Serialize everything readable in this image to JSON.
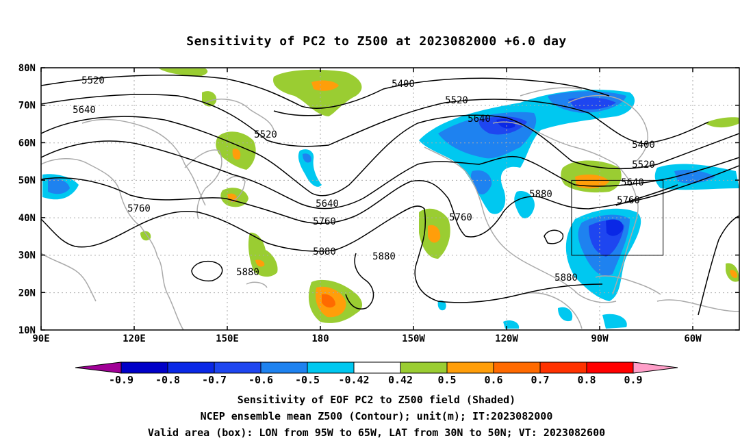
{
  "title": "Sensitivity of PC2 to Z500 at 2023082000 +6.0 day",
  "lat_labels": [
    "80N",
    "70N",
    "60N",
    "50N",
    "40N",
    "30N",
    "20N",
    "10N"
  ],
  "lon_labels": [
    "90E",
    "120E",
    "150E",
    "180",
    "150W",
    "120W",
    "90W",
    "60W"
  ],
  "contour_labels": [
    "5520",
    "5400",
    "5520",
    "5640",
    "5640",
    "5520",
    "5400",
    "5520",
    "5640",
    "5760",
    "5640",
    "5760",
    "5880",
    "5760",
    "5760",
    "5880",
    "5880",
    "5880",
    "5880"
  ],
  "colorbar": {
    "labels": [
      "-0.9",
      "-0.8",
      "-0.7",
      "-0.6",
      "-0.5",
      "-0.42",
      "0.42",
      "0.5",
      "0.6",
      "0.7",
      "0.8",
      "0.9"
    ],
    "colors": [
      "#a00096",
      "#0000c8",
      "#0a28e6",
      "#1e46f0",
      "#1e82f0",
      "#00c8f0",
      "#ffffff",
      "#9acd32",
      "#ff9e0a",
      "#ff6a00",
      "#ff3200",
      "#ff0000",
      "#ff9ec8"
    ]
  },
  "valid_box": {
    "lon_min": "95W",
    "lon_max": "65W",
    "lat_min": "30N",
    "lat_max": "50N"
  },
  "captions": {
    "line1": "Sensitivity of EOF PC2 to Z500 field (Shaded)",
    "line2": "NCEP ensemble mean Z500 (Contour); unit(m); IT:2023082000",
    "line3": "Valid area (box): LON from 95W to 65W, LAT from 30N to 50N; VT: 2023082600"
  }
}
